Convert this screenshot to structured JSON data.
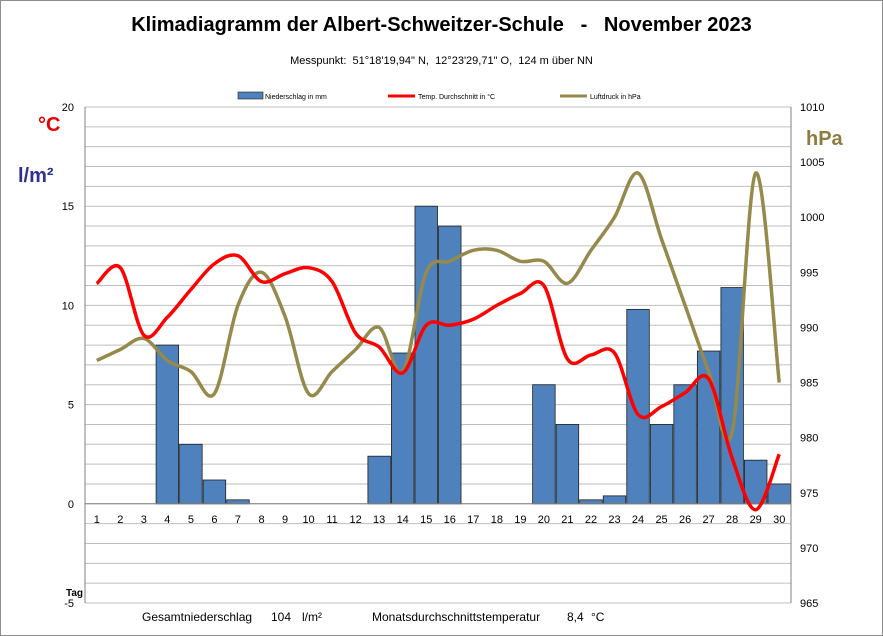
{
  "chart_data": {
    "type": "bar",
    "title": "Klimadiagramm der Albert-Schweitzer-Schule   -   November 2023",
    "subtitle": "Messpunkt:  51°18'19,94\" N,  12°23'29,71\" O,  124 m über NN",
    "left_units": [
      "°C",
      "l/m²"
    ],
    "right_unit": "hPa",
    "x_label": "Tag",
    "categories": [
      "1",
      "2",
      "3",
      "4",
      "5",
      "6",
      "7",
      "8",
      "9",
      "10",
      "11",
      "12",
      "13",
      "14",
      "15",
      "16",
      "17",
      "18",
      "19",
      "20",
      "21",
      "22",
      "23",
      "24",
      "25",
      "26",
      "27",
      "28",
      "29",
      "30"
    ],
    "left_ylim": [
      -5,
      20
    ],
    "left_ticks": [
      "20",
      "15",
      "10",
      "5",
      "0",
      "-5"
    ],
    "right_ylim": [
      965,
      1010
    ],
    "right_ticks": [
      "1010",
      "1005",
      "1000",
      "995",
      "990",
      "985",
      "980",
      "975",
      "970",
      "965"
    ],
    "grid": true,
    "legend_position": "top",
    "series": [
      {
        "name": "Niederschlag in mm",
        "type": "bar",
        "axis": "left",
        "color": "#4f81bd",
        "values": [
          0,
          0,
          0,
          8,
          3,
          1.2,
          0.2,
          0,
          0,
          0,
          0,
          0,
          2.4,
          7.6,
          15,
          14,
          0,
          0,
          0,
          6,
          4,
          0.2,
          0.4,
          9.8,
          4,
          6,
          7.7,
          10.9,
          2.2,
          1
        ]
      },
      {
        "name": "Temp. Durchschnitt in °C",
        "type": "line",
        "axis": "left",
        "color": "#ff0000",
        "values": [
          11.1,
          11.9,
          8.5,
          9.4,
          10.8,
          12.1,
          12.5,
          11.2,
          11.6,
          11.9,
          11.2,
          8.6,
          7.9,
          6.6,
          9.0,
          9.0,
          9.3,
          10.0,
          10.6,
          11.0,
          7.3,
          7.5,
          7.6,
          4.5,
          4.9,
          5.6,
          6.3,
          2.3,
          -0.3,
          2.5
        ]
      },
      {
        "name": "Luftdruck in hPa",
        "type": "line",
        "axis": "right",
        "color": "#958a4c",
        "values": [
          987,
          988,
          989,
          987,
          986,
          984,
          992,
          995,
          991,
          984,
          986,
          988,
          990,
          986,
          995,
          996,
          997,
          997,
          996,
          996,
          994,
          997,
          1000,
          1004,
          998,
          992,
          986,
          980.5,
          1004,
          985
        ]
      }
    ],
    "footer": {
      "total_label": "Gesamtniederschlag",
      "total_value": "104",
      "total_unit": "l/m²",
      "avg_label": "Monatsdurchschnittstemperatur",
      "avg_value": "8,4",
      "avg_unit": "°C"
    }
  }
}
